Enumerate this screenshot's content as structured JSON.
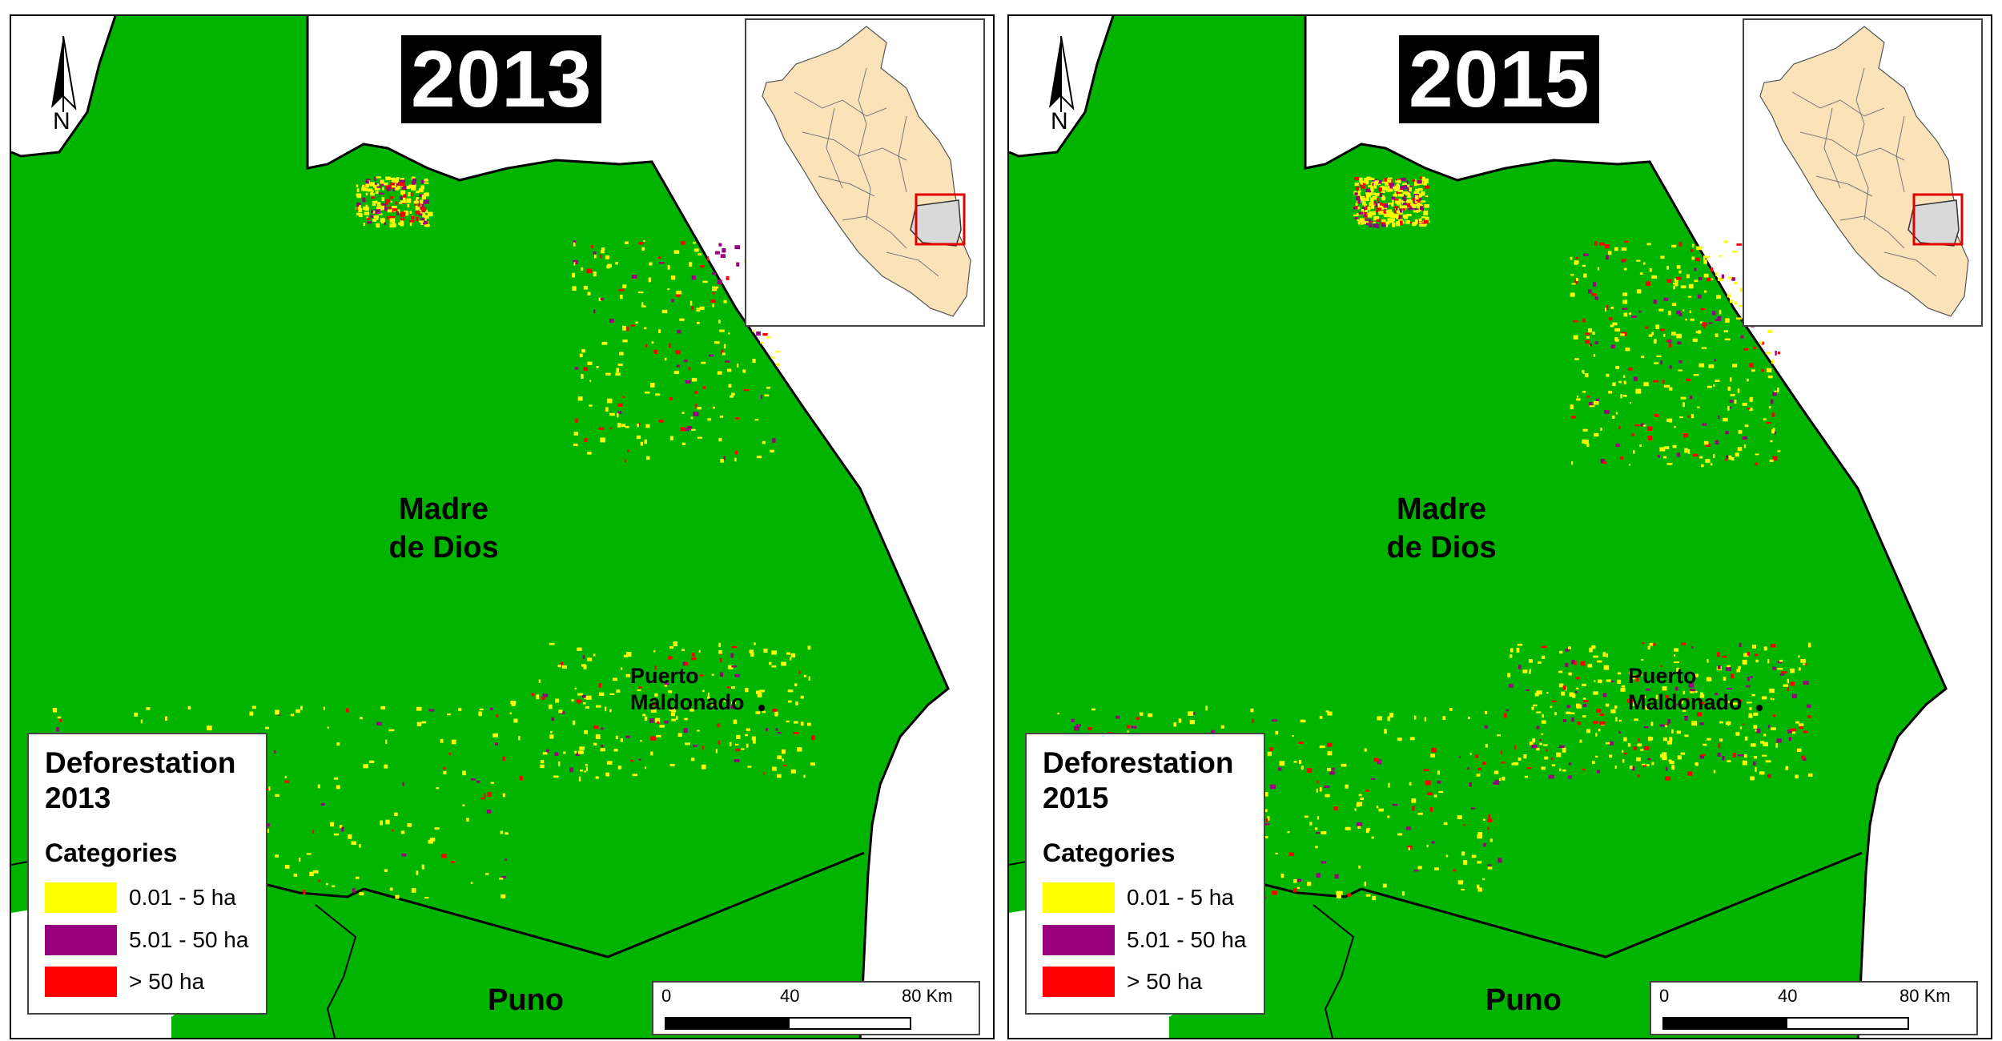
{
  "panels": [
    {
      "year": "2013",
      "region_main_line1": "Madre",
      "region_main_line2": "de Dios",
      "region_south": "Puno",
      "city_line1": "Puerto",
      "city_line2": "Maldonado",
      "north_label": "N",
      "legend": {
        "title_line1": "Deforestation",
        "title_line2": "2013",
        "categories_heading": "Categories",
        "items": [
          {
            "label": "0.01 - 5 ha",
            "color": "#ffff00"
          },
          {
            "label": "5.01 - 50 ha",
            "color": "#990080"
          },
          {
            "label": "> 50 ha",
            "color": "#ff0000"
          }
        ]
      },
      "scale": {
        "t0": "0",
        "t1": "40",
        "t2": "80 Km"
      }
    },
    {
      "year": "2015",
      "region_main_line1": "Madre",
      "region_main_line2": "de Dios",
      "region_south": "Puno",
      "city_line1": "Puerto",
      "city_line2": "Maldonado",
      "north_label": "N",
      "legend": {
        "title_line1": "Deforestation",
        "title_line2": "2015",
        "categories_heading": "Categories",
        "items": [
          {
            "label": "0.01 - 5 ha",
            "color": "#ffff00"
          },
          {
            "label": "5.01 - 50 ha",
            "color": "#990080"
          },
          {
            "label": "> 50 ha",
            "color": "#ff0000"
          }
        ]
      },
      "scale": {
        "t0": "0",
        "t1": "40",
        "t2": "80 Km"
      }
    }
  ],
  "colors": {
    "forest": "#00b400",
    "inset_land": "#fbe3b9",
    "inset_highlight_region": "#d9d9d9",
    "inset_box": "#e00000"
  }
}
